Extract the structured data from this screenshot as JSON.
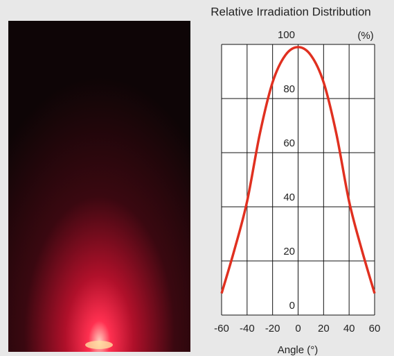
{
  "chart_data": {
    "type": "line",
    "title": "Relative Irradiation Distribution",
    "xlabel": "Angle (°)",
    "ylabel": "(%)",
    "x": [
      -60,
      -50,
      -40,
      -30,
      -20,
      -10,
      0,
      10,
      20,
      30,
      40,
      50,
      60
    ],
    "series": [
      {
        "color": "#e03020",
        "values": [
          8,
          24,
          42,
          67,
          86,
          96,
          99,
          96,
          86,
          67,
          42,
          24,
          8
        ]
      }
    ],
    "xlim": [
      -60,
      60
    ],
    "ylim": [
      0,
      100
    ],
    "xticks": [
      -60,
      -40,
      -20,
      0,
      20,
      40,
      60
    ],
    "yticks": [
      0,
      20,
      40,
      60,
      80,
      100
    ],
    "grid": true
  }
}
